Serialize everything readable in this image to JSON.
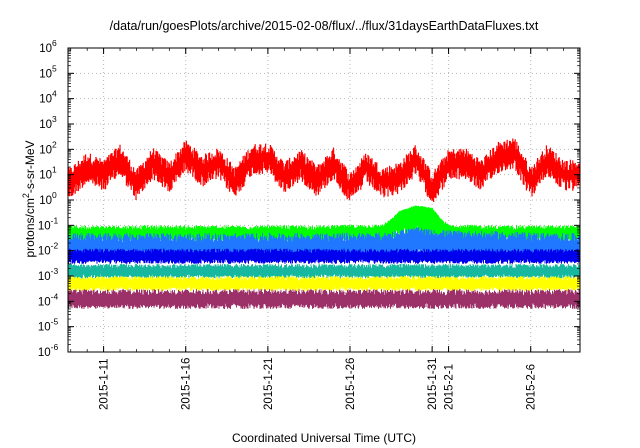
{
  "chart_data": {
    "type": "line",
    "title": "/data/run/goesPlots/archive/2015-02-08/flux/../flux/31daysEarthDataFluxes.txt",
    "xlabel": "Coordinated Universal Time (UTC)",
    "ylabel": "protons/cm²-s-sr-MeV",
    "ylabel_parts": {
      "pre": "protons/cm",
      "sup": "2",
      "post": "-s-sr-MeV"
    },
    "y_scale": "log",
    "ylim": [
      1e-06,
      1000000.0
    ],
    "xlim": [
      "2015-01-08T20:00",
      "2015-02-09T00:00"
    ],
    "grid": true,
    "y_ticks": [
      {
        "base": "10",
        "exp": "-6"
      },
      {
        "base": "10",
        "exp": "-5"
      },
      {
        "base": "10",
        "exp": "-4"
      },
      {
        "base": "10",
        "exp": "-3"
      },
      {
        "base": "10",
        "exp": "-2"
      },
      {
        "base": "10",
        "exp": "-1"
      },
      {
        "base": "10",
        "exp": "0"
      },
      {
        "base": "10",
        "exp": "1"
      },
      {
        "base": "10",
        "exp": "2"
      },
      {
        "base": "10",
        "exp": "3"
      },
      {
        "base": "10",
        "exp": "4"
      },
      {
        "base": "10",
        "exp": "5"
      },
      {
        "base": "10",
        "exp": "6"
      }
    ],
    "x_ticks": [
      "2015-1-11",
      "2015-1-16",
      "2015-1-21",
      "2015-1-26",
      "2015-1-31",
      "2015-2-1",
      "2015-2-6"
    ],
    "series": [
      {
        "color": "#ff0000",
        "envelope_low": 1,
        "envelope_high": 2,
        "x": [
          "2015-01-09",
          "2015-01-10",
          "2015-01-11",
          "2015-01-12",
          "2015-01-13",
          "2015-01-14",
          "2015-01-15",
          "2015-01-16",
          "2015-01-17",
          "2015-01-18",
          "2015-01-19",
          "2015-01-20",
          "2015-01-21",
          "2015-01-22",
          "2015-01-23",
          "2015-01-24",
          "2015-01-25",
          "2015-01-26",
          "2015-01-27",
          "2015-01-28",
          "2015-01-29",
          "2015-01-30",
          "2015-01-31",
          "2015-02-01",
          "2015-02-02",
          "2015-02-03",
          "2015-02-04",
          "2015-02-05",
          "2015-02-06",
          "2015-02-07",
          "2015-02-08"
        ],
        "values": [
          5,
          20,
          10,
          40,
          4,
          30,
          8,
          60,
          15,
          30,
          5,
          40,
          50,
          8,
          25,
          6,
          30,
          3,
          20,
          5,
          8,
          40,
          3,
          25,
          30,
          10,
          50,
          80,
          5,
          40,
          10
        ]
      },
      {
        "color": "#00ff00",
        "envelope_low": 0.02,
        "envelope_high": 0.1,
        "x": [
          "2015-01-09",
          "2015-01-14",
          "2015-01-19",
          "2015-01-24",
          "2015-01-28",
          "2015-01-29",
          "2015-01-30",
          "2015-01-31",
          "2015-02-01",
          "2015-02-04",
          "2015-02-08"
        ],
        "values": [
          0.05,
          0.05,
          0.05,
          0.05,
          0.06,
          0.3,
          0.5,
          0.4,
          0.06,
          0.05,
          0.05
        ]
      },
      {
        "color": "#1f78ff",
        "envelope_low": 0.004,
        "envelope_high": 0.05,
        "x": [
          "2015-01-09",
          "2015-01-19",
          "2015-01-28",
          "2015-01-30",
          "2015-01-31",
          "2015-02-08"
        ],
        "values": [
          0.012,
          0.012,
          0.013,
          0.03,
          0.02,
          0.012
        ]
      },
      {
        "color": "#0000ee",
        "envelope_low": 0.003,
        "envelope_high": 0.012,
        "x": [
          "2015-01-09",
          "2015-02-08"
        ],
        "values": [
          0.006,
          0.006
        ]
      },
      {
        "color": "#17b8a0",
        "envelope_low": 0.0008,
        "envelope_high": 0.003,
        "x": [
          "2015-01-09",
          "2015-02-08"
        ],
        "values": [
          0.0015,
          0.0015
        ]
      },
      {
        "color": "#ffff00",
        "envelope_low": 0.00025,
        "envelope_high": 0.001,
        "x": [
          "2015-01-09",
          "2015-02-08"
        ],
        "values": [
          0.0005,
          0.0005
        ]
      },
      {
        "color": "#9c3068",
        "envelope_low": 5e-05,
        "envelope_high": 0.0003,
        "x": [
          "2015-01-09",
          "2015-02-08"
        ],
        "values": [
          0.00012,
          0.00012
        ]
      }
    ]
  }
}
